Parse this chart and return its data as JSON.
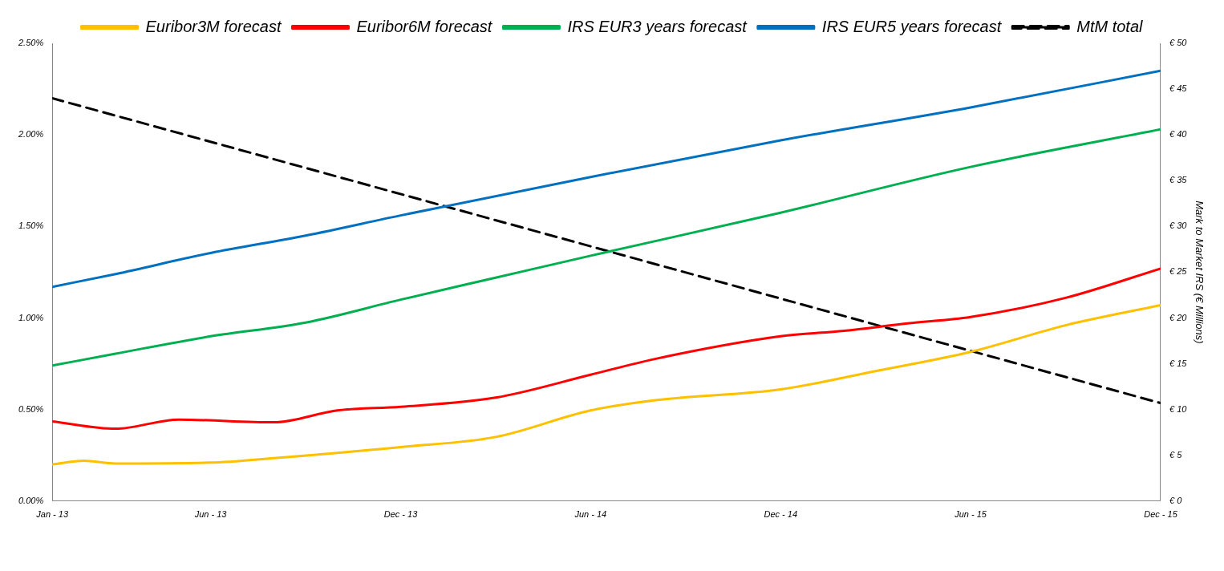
{
  "chart_data": {
    "type": "line",
    "y2label": "Mark to Market IRS (€ Millions)",
    "xlim": [
      "2013-01",
      "2015-12"
    ],
    "xticks": [
      {
        "value": "2013-01",
        "label": "Jan - 13"
      },
      {
        "value": "2013-06",
        "label": "Jun - 13"
      },
      {
        "value": "2013-12",
        "label": "Dec - 13"
      },
      {
        "value": "2014-06",
        "label": "Jun - 14"
      },
      {
        "value": "2014-12",
        "label": "Dec - 14"
      },
      {
        "value": "2015-06",
        "label": "Jun - 15"
      },
      {
        "value": "2015-12",
        "label": "Dec - 15"
      }
    ],
    "ylim": [
      0,
      2.5
    ],
    "yticks": [
      {
        "value": 0,
        "label": "0.00%"
      },
      {
        "value": 0.5,
        "label": "0.50%"
      },
      {
        "value": 1,
        "label": "1.00%"
      },
      {
        "value": 1.5,
        "label": "1.50%"
      },
      {
        "value": 2,
        "label": "2.00%"
      },
      {
        "value": 2.5,
        "label": "2.50%"
      }
    ],
    "y2lim": [
      0,
      50
    ],
    "y2ticks": [
      {
        "value": 0,
        "label": "€ 0"
      },
      {
        "value": 5,
        "label": "€ 5"
      },
      {
        "value": 10,
        "label": "€ 10"
      },
      {
        "value": 15,
        "label": "€ 15"
      },
      {
        "value": 20,
        "label": "€ 20"
      },
      {
        "value": 25,
        "label": "€ 25"
      },
      {
        "value": 30,
        "label": "€ 30"
      },
      {
        "value": 35,
        "label": "€ 35"
      },
      {
        "value": 40,
        "label": "€ 40"
      },
      {
        "value": 45,
        "label": "€ 45"
      },
      {
        "value": 50,
        "label": "€ 50"
      }
    ],
    "grid": false,
    "legend": "top",
    "marker": "none",
    "series": [
      {
        "name": "Euribor3M forecast",
        "color": "#ffc000",
        "x": [
          "2013-01",
          "2013-02",
          "2013-03",
          "2013-06",
          "2013-08",
          "2013-12",
          "2014-03",
          "2014-06",
          "2014-08",
          "2014-12",
          "2015-03",
          "2015-06",
          "2015-09",
          "2015-12"
        ],
        "values": [
          0.2,
          0.22,
          0.205,
          0.21,
          0.235,
          0.295,
          0.35,
          0.495,
          0.55,
          0.61,
          0.71,
          0.815,
          0.96,
          1.07
        ]
      },
      {
        "name": "Euribor6M forecast",
        "color": "#ff0000",
        "x": [
          "2013-01",
          "2013-03",
          "2013-05",
          "2013-08",
          "2013-10",
          "2013-12",
          "2014-03",
          "2014-06",
          "2014-08",
          "2014-12",
          "2015-02",
          "2015-04",
          "2015-06",
          "2015-09",
          "2015-12"
        ],
        "values": [
          0.435,
          0.395,
          0.445,
          0.43,
          0.495,
          0.515,
          0.565,
          0.69,
          0.775,
          0.9,
          0.93,
          0.97,
          1.005,
          1.11,
          1.27
        ]
      },
      {
        "name": "IRS EUR3 years forecast",
        "color": "#00b050",
        "x": [
          "2013-01",
          "2013-03",
          "2013-06",
          "2013-09",
          "2013-12",
          "2014-03",
          "2014-06",
          "2014-12",
          "2015-06",
          "2015-12"
        ],
        "values": [
          0.74,
          0.805,
          0.9,
          0.975,
          1.1,
          1.22,
          1.34,
          1.575,
          1.825,
          2.03
        ]
      },
      {
        "name": "IRS EUR5 years forecast",
        "color": "#0070c0",
        "x": [
          "2013-01",
          "2013-03",
          "2013-06",
          "2013-09",
          "2013-12",
          "2014-06",
          "2014-12",
          "2015-06",
          "2015-12"
        ],
        "values": [
          1.17,
          1.24,
          1.355,
          1.45,
          1.56,
          1.77,
          1.97,
          2.15,
          2.35
        ]
      },
      {
        "name": "MtM total",
        "color": "#000000",
        "axis": "y2",
        "line_style": "dashed",
        "x": [
          "2013-01",
          "2015-12"
        ],
        "values": [
          44,
          10.7
        ]
      }
    ]
  }
}
